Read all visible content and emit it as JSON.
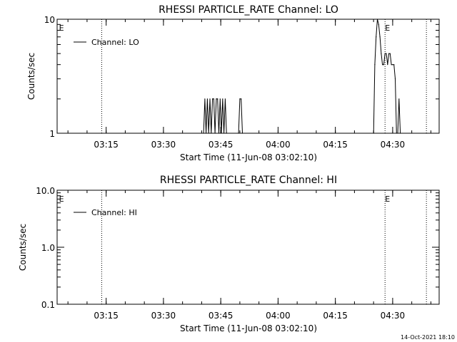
{
  "footer": {
    "date_stamp": "14-Oct-2021 18:10"
  },
  "chart_data": [
    {
      "type": "line",
      "title": "RHESSI PARTICLE_RATE Channel: LO",
      "xlabel": "Start Time (11-Jun-08 03:02:10)",
      "ylabel": "Counts/sec",
      "yscale": "log",
      "ylim": [
        1,
        10
      ],
      "xlim": [
        "03:02:10",
        "04:42:10"
      ],
      "y_tick_labels": [
        "1",
        "10"
      ],
      "x_tick_labels": [
        "03:15",
        "03:30",
        "03:45",
        "04:00",
        "04:15",
        "04:30"
      ],
      "legend": {
        "entries": [
          "Channel: LO"
        ],
        "placement": "top-left"
      },
      "event_markers": [
        {
          "time": "03:02:40",
          "label": "E"
        },
        {
          "time": "04:28:00",
          "label": "E"
        }
      ],
      "dotted_lines": [
        "03:13:50",
        "04:28:00",
        "04:38:50"
      ],
      "series": [
        {
          "name": "Channel: LO",
          "x": [
            "03:40:30",
            "03:40:50",
            "03:41:10",
            "03:41:30",
            "03:41:50",
            "03:42:10",
            "03:42:30",
            "03:42:50",
            "03:43:10",
            "03:43:30",
            "03:43:50",
            "03:44:10",
            "03:44:30",
            "03:44:50",
            "03:45:10",
            "03:45:30",
            "03:45:50",
            "03:46:10",
            "03:46:30",
            "03:49:40",
            "03:50:00",
            "03:50:20",
            "03:50:40",
            "04:25:00",
            "04:25:20",
            "04:25:40",
            "04:26:00",
            "04:26:20",
            "04:26:40",
            "04:27:00",
            "04:27:20",
            "04:27:40",
            "04:28:00",
            "04:28:20",
            "04:28:40",
            "04:29:00",
            "04:29:20",
            "04:29:40",
            "04:30:00",
            "04:30:20",
            "04:30:40",
            "04:31:00",
            "04:31:20",
            "04:31:40",
            "04:32:00"
          ],
          "values": [
            1,
            2,
            1,
            2,
            1,
            2,
            1,
            2,
            2,
            1,
            2,
            2,
            1,
            2,
            1,
            2,
            1,
            2,
            1,
            1,
            2,
            2,
            1,
            1,
            4,
            7,
            10,
            9,
            7,
            5,
            4,
            4,
            5,
            5,
            4,
            5,
            5,
            4,
            4,
            4,
            3,
            1,
            1,
            2,
            1
          ]
        }
      ]
    },
    {
      "type": "line",
      "title": "RHESSI PARTICLE_RATE Channel: HI",
      "xlabel": "Start Time (11-Jun-08 03:02:10)",
      "ylabel": "Counts/sec",
      "yscale": "log",
      "ylim": [
        0.1,
        10
      ],
      "xlim": [
        "03:02:10",
        "04:42:10"
      ],
      "y_tick_labels": [
        "0.1",
        "1.0",
        "10.0"
      ],
      "x_tick_labels": [
        "03:15",
        "03:30",
        "03:45",
        "04:00",
        "04:15",
        "04:30"
      ],
      "legend": {
        "entries": [
          "Channel: HI"
        ],
        "placement": "top-left"
      },
      "event_markers": [
        {
          "time": "03:02:40",
          "label": "E"
        },
        {
          "time": "04:28:00",
          "label": "E"
        }
      ],
      "dotted_lines": [
        "03:13:50",
        "04:28:00",
        "04:38:50"
      ],
      "series": [
        {
          "name": "Channel: HI",
          "x": [],
          "values": []
        }
      ]
    }
  ]
}
